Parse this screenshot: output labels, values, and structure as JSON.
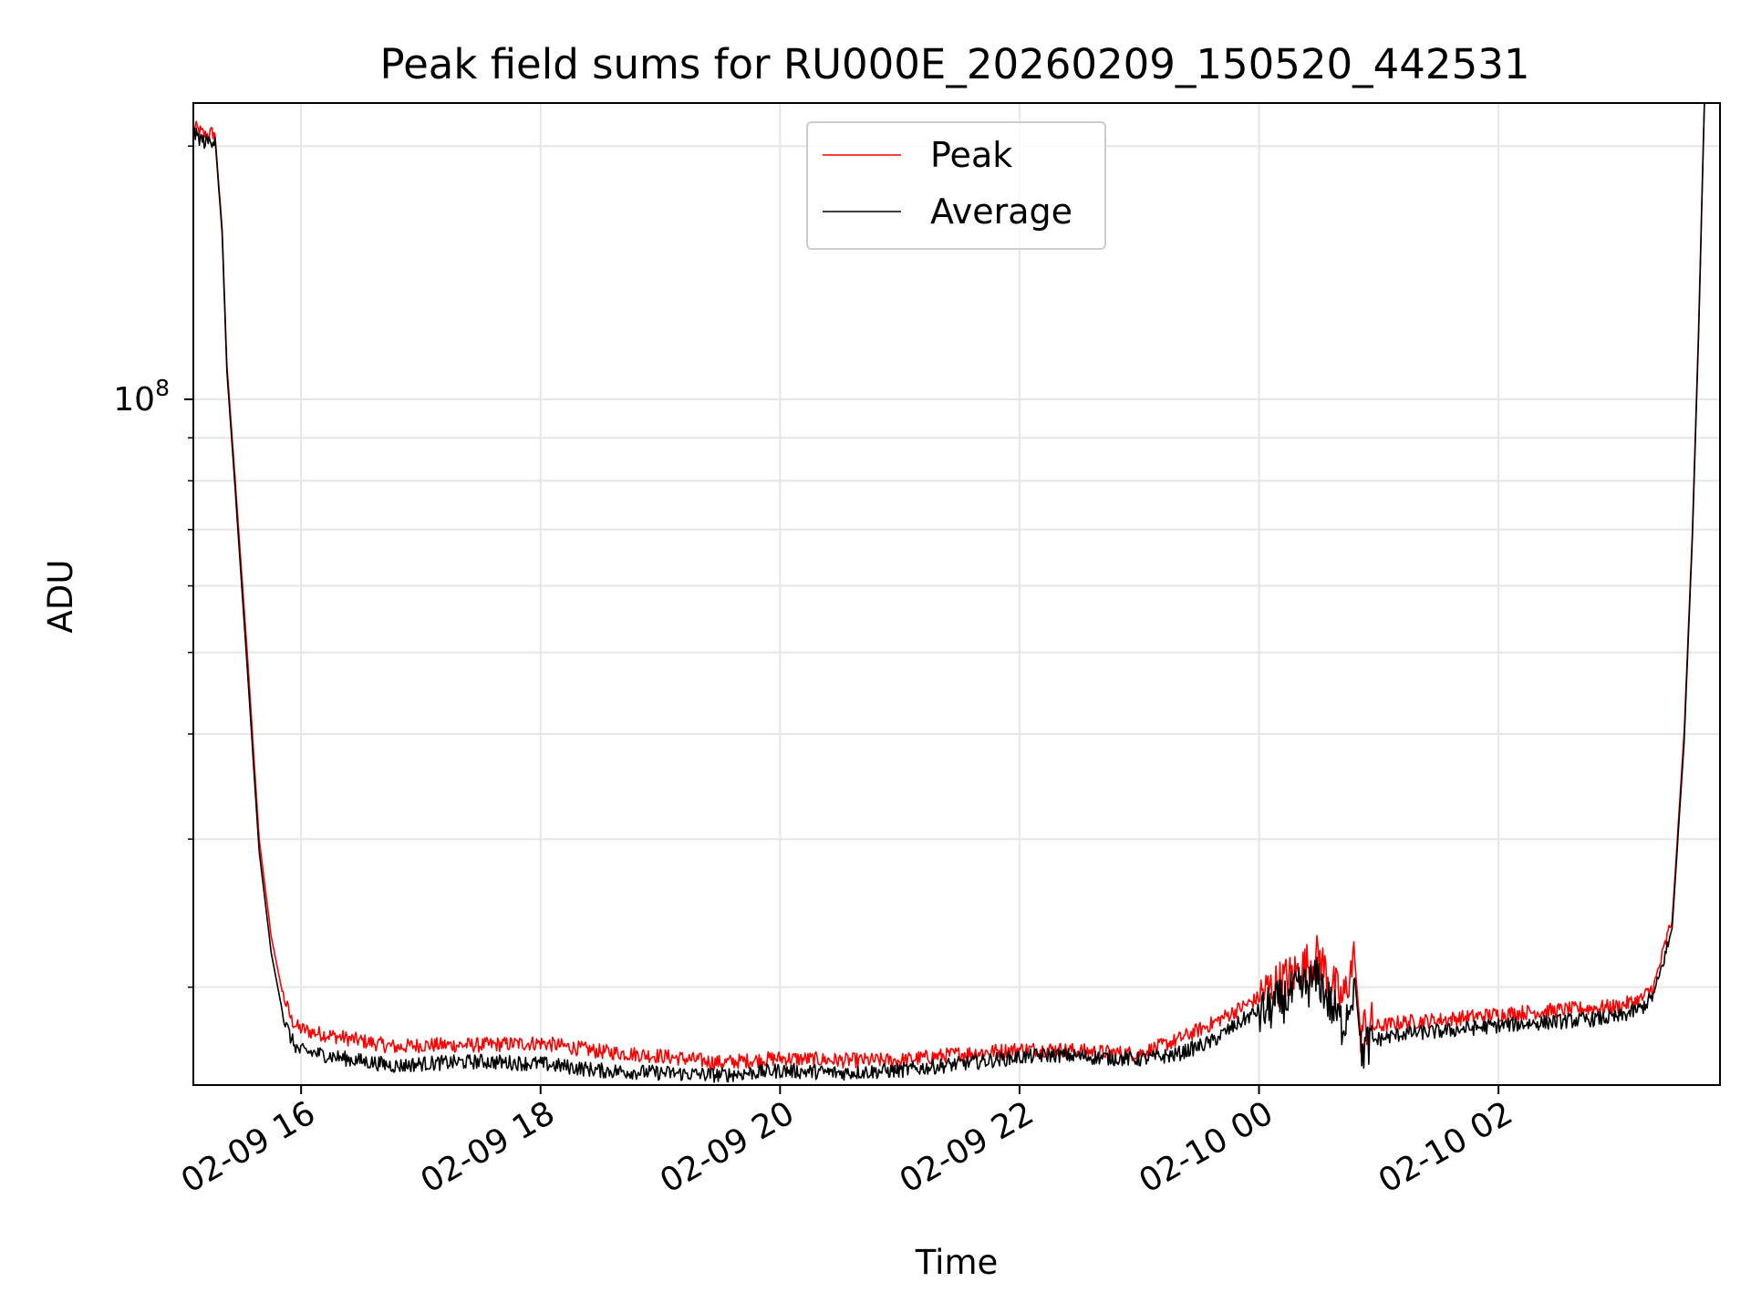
{
  "chart_data": {
    "type": "line",
    "title": "Peak field sums for RU000E_20260209_150520_442531",
    "xlabel": "Time",
    "ylabel": "ADU",
    "yscale": "log",
    "ylim": [
      15300000,
      225000000
    ],
    "xlim_hours": [
      -0.9,
      11.85
    ],
    "y_major_tick": {
      "value": 100000000,
      "base": "10",
      "exp": "8"
    },
    "y_minor_ticks": [
      20000000,
      30000000,
      40000000,
      50000000,
      60000000,
      70000000,
      80000000,
      90000000,
      200000000
    ],
    "x_ticks": [
      {
        "hours": 0,
        "label": "02-09 16"
      },
      {
        "hours": 2,
        "label": "02-09 18"
      },
      {
        "hours": 4,
        "label": "02-09 20"
      },
      {
        "hours": 6,
        "label": "02-09 22"
      },
      {
        "hours": 8,
        "label": "02-10 00"
      },
      {
        "hours": 10,
        "label": "02-10 02"
      }
    ],
    "x_origin": "2026-02-09 16:00",
    "grid": true,
    "legend": "top-center",
    "series": [
      {
        "name": "Peak",
        "color": "#ff0000",
        "x_hours": [
          -0.9,
          -0.8,
          -0.72,
          -0.66,
          -0.62,
          -0.55,
          -0.45,
          -0.35,
          -0.25,
          -0.15,
          -0.08,
          -0.02,
          0.1,
          0.4,
          0.8,
          1.0,
          1.5,
          2.0,
          2.5,
          3.0,
          3.5,
          4.0,
          4.5,
          5.0,
          5.5,
          6.0,
          6.3,
          6.6,
          7.0,
          7.3,
          7.6,
          7.9,
          8.1,
          8.3,
          8.5,
          8.6,
          8.7,
          8.8,
          8.85,
          8.9,
          9.2,
          9.5,
          10.0,
          10.5,
          11.0,
          11.2,
          11.3,
          11.45,
          11.55,
          11.62,
          11.67,
          11.72
        ],
        "values": [
          210000000,
          205000000,
          207000000,
          160000000,
          110000000,
          80000000,
          50000000,
          30000000,
          23000000,
          19500000,
          18200000,
          17800000,
          17600000,
          17300000,
          16900000,
          17000000,
          17000000,
          17100000,
          16700000,
          16500000,
          16200000,
          16400000,
          16300000,
          16300000,
          16600000,
          16800000,
          16800000,
          16700000,
          16600000,
          17200000,
          18000000,
          19000000,
          19700000,
          20500000,
          21500000,
          20000000,
          19000000,
          21500000,
          17500000,
          17800000,
          18100000,
          18200000,
          18500000,
          18700000,
          18900000,
          19300000,
          20000000,
          24000000,
          40000000,
          70000000,
          120000000,
          225000000
        ]
      },
      {
        "name": "Average",
        "color": "#000000",
        "x_hours": [
          -0.9,
          -0.8,
          -0.72,
          -0.66,
          -0.62,
          -0.55,
          -0.45,
          -0.35,
          -0.25,
          -0.15,
          -0.08,
          -0.02,
          0.1,
          0.4,
          0.8,
          1.0,
          1.5,
          2.0,
          2.5,
          3.0,
          3.5,
          4.0,
          4.5,
          5.0,
          5.5,
          6.0,
          6.3,
          6.6,
          7.0,
          7.3,
          7.6,
          7.9,
          8.1,
          8.3,
          8.5,
          8.6,
          8.7,
          8.8,
          8.85,
          8.9,
          9.2,
          9.5,
          10.0,
          10.5,
          11.0,
          11.2,
          11.3,
          11.45,
          11.55,
          11.62,
          11.67,
          11.72
        ],
        "values": [
          208000000,
          203000000,
          205000000,
          158000000,
          108000000,
          78000000,
          48000000,
          29000000,
          22000000,
          18500000,
          17400000,
          16900000,
          16800000,
          16500000,
          16200000,
          16300000,
          16400000,
          16300000,
          16000000,
          15900000,
          15800000,
          16000000,
          15900000,
          16000000,
          16300000,
          16600000,
          16700000,
          16600000,
          16500000,
          16700000,
          17300000,
          18500000,
          19200000,
          20000000,
          20800000,
          19300000,
          18300000,
          20500000,
          17000000,
          17300000,
          17700000,
          17800000,
          18100000,
          18300000,
          18500000,
          19000000,
          19700000,
          23500000,
          39000000,
          69000000,
          118000000,
          225000000
        ]
      }
    ]
  }
}
